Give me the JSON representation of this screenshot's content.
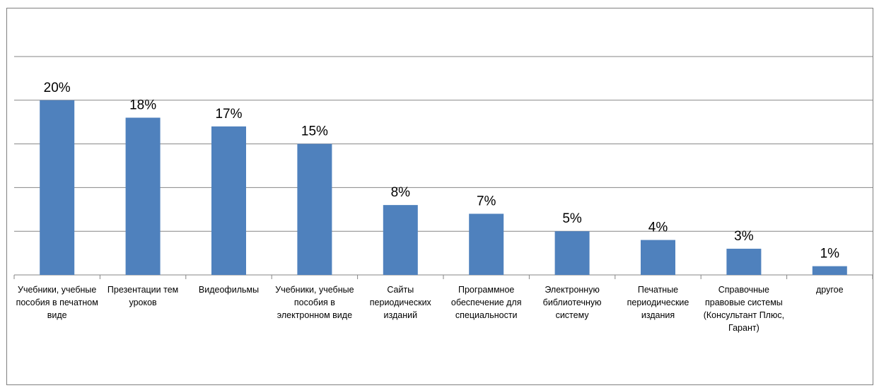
{
  "chart_data": {
    "type": "bar",
    "title": "",
    "xlabel": "",
    "ylabel": "",
    "ylim": [
      0,
      25
    ],
    "grid": true,
    "legend": "none",
    "bar_color": "#4f81bd",
    "grid_color": "#868686",
    "categories": [
      "Учебники, учебные пособия в печатном виде",
      "Презентации тем уроков",
      "Видеофильмы",
      "Учебники, учебные пособия в электронном виде",
      "Сайты периодических изданий",
      "Программное обеспечение для специальности",
      "Электронную библиотечную систему",
      "Печатные периодические издания",
      "Справочные правовые системы (Консультант Плюс, Гарант)",
      "другое"
    ],
    "values": [
      20,
      18,
      17,
      15,
      8,
      7,
      5,
      4,
      3,
      1
    ],
    "value_labels": [
      "20%",
      "18%",
      "17%",
      "15%",
      "8%",
      "7%",
      "5%",
      "4%",
      "3%",
      "1%"
    ]
  }
}
